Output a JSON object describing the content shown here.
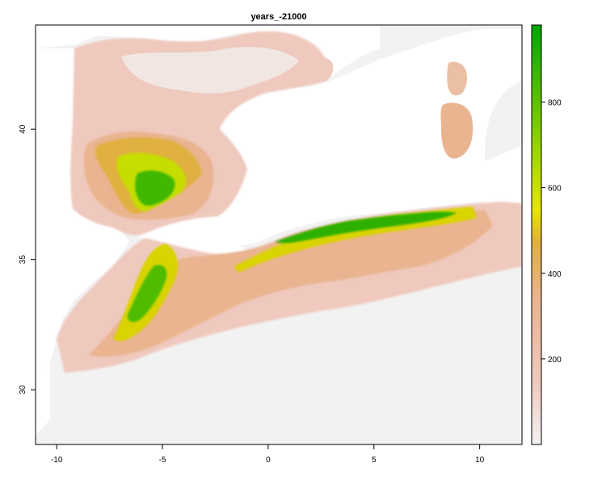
{
  "title": "years_-21000",
  "chart_data": {
    "type": "heatmap",
    "title": "years_-21000",
    "xlim": [
      -11,
      12
    ],
    "ylim": [
      27.9,
      44.0
    ],
    "x_ticks": [
      -10,
      -5,
      0,
      5,
      10
    ],
    "y_ticks": [
      30,
      35,
      40
    ],
    "x_tick_labels": [
      "-10",
      "-5",
      "0",
      "5",
      "10"
    ],
    "y_tick_labels": [
      "30",
      "35",
      "40"
    ],
    "legend": {
      "position": "right",
      "min": 0,
      "max": 980,
      "ticks": [
        200,
        400,
        600,
        800
      ],
      "tick_labels": [
        "200",
        "400",
        "600",
        "800"
      ],
      "colors": [
        "#f2f2f2",
        "#efc9bd",
        "#e9b48f",
        "#e0b040",
        "#e6e600",
        "#a6d800",
        "#5cc100",
        "#00a600"
      ]
    },
    "sea_color": "#ffffff",
    "land_base_value": 15
  }
}
